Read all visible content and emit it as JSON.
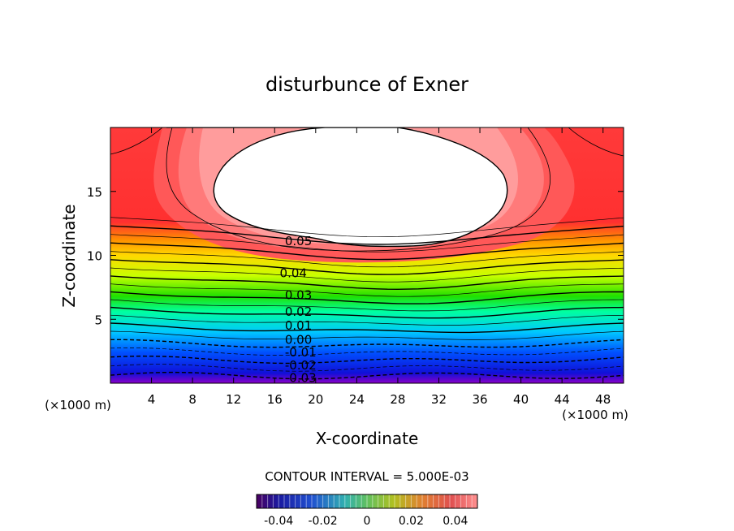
{
  "chart_data": {
    "type": "heatmap",
    "title": "disturbunce of Exner",
    "xlabel": "X-coordinate",
    "ylabel": "Z-coordinate",
    "x_unit": "(×1000 m)",
    "z_unit": "(×1000 m)",
    "xlim": [
      0,
      50
    ],
    "ylim": [
      0,
      20
    ],
    "xticks": [
      "4",
      "8",
      "12",
      "16",
      "20",
      "24",
      "28",
      "32",
      "36",
      "40",
      "44",
      "48"
    ],
    "yticks": [
      "5",
      "10",
      "15"
    ],
    "contour_interval_text": "CONTOUR INTERVAL = 5.000E-03",
    "contour_interval": 0.005,
    "contour_labels": [
      {
        "text": "0.05",
        "x": 17,
        "z": 11.1
      },
      {
        "text": "0.04",
        "x": 16.5,
        "z": 8.6
      },
      {
        "text": "0.03",
        "x": 17,
        "z": 6.9
      },
      {
        "text": "0.02",
        "x": 17,
        "z": 5.6
      },
      {
        "text": "0.01",
        "x": 17,
        "z": 4.5
      },
      {
        "text": "0.00",
        "x": 17,
        "z": 3.4
      },
      {
        "text": "-0.01",
        "x": 17,
        "z": 2.4
      },
      {
        "text": "-0.02",
        "x": 17,
        "z": 1.4
      },
      {
        "text": "-0.03",
        "x": 17,
        "z": 0.4
      }
    ],
    "colorbar": {
      "range": [
        -0.05,
        0.05
      ],
      "ticks": [
        "-0.04",
        "-0.02",
        "0",
        "0.02",
        "0.04"
      ],
      "tick_values": [
        -0.04,
        -0.02,
        0,
        0.02,
        0.04
      ]
    },
    "high_region_min": 0.05
  }
}
